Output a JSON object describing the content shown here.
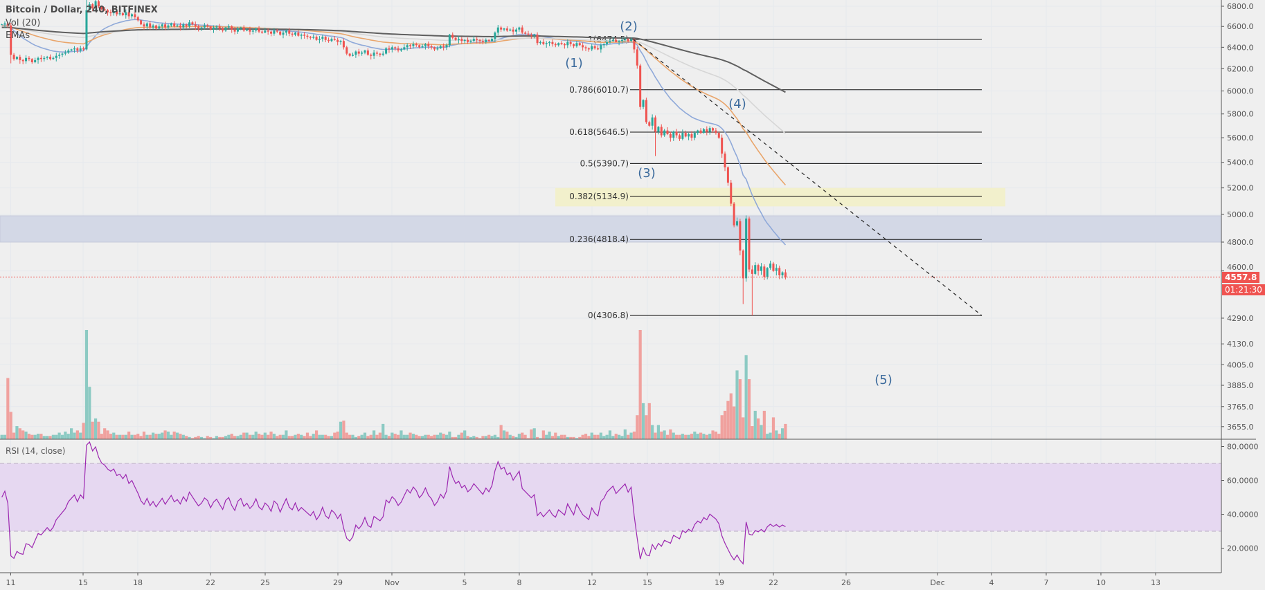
{
  "header": {
    "title": "Bitcoin / Dollar, 240, BITFINEX",
    "vol_label": "Vol (20)",
    "ema_label": "EMAs"
  },
  "rsi": {
    "label": "RSI (14, close)"
  },
  "colors": {
    "background": "#efefef",
    "candle_up": "#26a69a",
    "candle_down": "#ef5350",
    "volume_up": "#8ccac3",
    "volume_down": "#f0a19e",
    "ema_fast": "#8fa9d9",
    "ema_mid": "#e9a56b",
    "ema_slow": "#d6d6d6",
    "ema_long": "#5f5f5f",
    "rsi_line": "#9c27b0",
    "rsi_band": "#e6d8f1",
    "wave_label": "#3b6a9c",
    "zone_fib": "#f2f0cc",
    "zone_support": "#d3d8e6",
    "last_price": "#ef5350"
  },
  "chart_data": {
    "type": "candlestick",
    "price_scale": "log",
    "interval": "240",
    "x_ticks": [
      "11",
      "15",
      "18",
      "22",
      "25",
      "29",
      "Nov",
      "5",
      "8",
      "12",
      "15",
      "19",
      "22",
      "26",
      "Dec",
      "4",
      "7",
      "10",
      "13"
    ],
    "price_ticks": [
      "6800.0",
      "6600.0",
      "6400.0",
      "6200.0",
      "6000.0",
      "5800.0",
      "5600.0",
      "5400.0",
      "5200.0",
      "5000.0",
      "4800.0",
      "4600.0",
      "4290.0",
      "4130.0",
      "4005.0",
      "3885.0",
      "3765.0",
      "3655.0"
    ],
    "closes": [
      6620,
      6630,
      6610,
      6330,
      6290,
      6310,
      6280,
      6270,
      6300,
      6290,
      6260,
      6280,
      6300,
      6290,
      6300,
      6310,
      6290,
      6300,
      6320,
      6330,
      6340,
      6350,
      6370,
      6380,
      6390,
      6370,
      6390,
      6380,
      6760,
      6820,
      6780,
      6850,
      6800,
      6770,
      6760,
      6740,
      6730,
      6750,
      6720,
      6730,
      6710,
      6740,
      6700,
      6720,
      6690,
      6660,
      6620,
      6600,
      6630,
      6590,
      6610,
      6580,
      6600,
      6620,
      6590,
      6610,
      6630,
      6600,
      6610,
      6590,
      6620,
      6600,
      6640,
      6620,
      6600,
      6580,
      6590,
      6610,
      6600,
      6570,
      6590,
      6600,
      6580,
      6560,
      6590,
      6600,
      6570,
      6550,
      6580,
      6590,
      6560,
      6570,
      6550,
      6560,
      6580,
      6550,
      6540,
      6560,
      6550,
      6530,
      6560,
      6550,
      6520,
      6540,
      6560,
      6530,
      6520,
      6540,
      6510,
      6520,
      6510,
      6500,
      6490,
      6500,
      6470,
      6480,
      6500,
      6470,
      6460,
      6480,
      6470,
      6450,
      6460,
      6400,
      6340,
      6320,
      6330,
      6360,
      6340,
      6350,
      6370,
      6330,
      6320,
      6350,
      6340,
      6330,
      6340,
      6390,
      6380,
      6400,
      6390,
      6370,
      6380,
      6400,
      6420,
      6410,
      6430,
      6420,
      6400,
      6410,
      6430,
      6410,
      6400,
      6380,
      6390,
      6410,
      6400,
      6420,
      6520,
      6490,
      6470,
      6480,
      6460,
      6470,
      6450,
      6460,
      6480,
      6470,
      6460,
      6450,
      6470,
      6460,
      6480,
      6540,
      6590,
      6570,
      6580,
      6560,
      6570,
      6550,
      6570,
      6590,
      6540,
      6530,
      6520,
      6510,
      6520,
      6440,
      6450,
      6430,
      6440,
      6450,
      6430,
      6420,
      6440,
      6430,
      6420,
      6450,
      6430,
      6410,
      6440,
      6420,
      6400,
      6390,
      6380,
      6410,
      6390,
      6380,
      6420,
      6430,
      6450,
      6460,
      6470,
      6450,
      6460,
      6470,
      6480,
      6460,
      6474.5,
      6380,
      6230,
      5860,
      5920,
      5730,
      5700,
      5770,
      5650,
      5690,
      5620,
      5660,
      5630,
      5600,
      5650,
      5620,
      5590,
      5640,
      5610,
      5630,
      5600,
      5640,
      5660,
      5640,
      5670,
      5650,
      5680,
      5660,
      5640,
      5600,
      5470,
      5360,
      5240,
      5080,
      4920,
      4950,
      4740,
      4550,
      4970,
      4610,
      4580,
      4640,
      4600,
      4630,
      4560,
      4620,
      4650,
      4600,
      4620,
      4570,
      4590,
      4557.8
    ],
    "extremes": [
      {
        "candle": 3,
        "low": 6250
      },
      {
        "candle": 28,
        "high": 7100
      },
      {
        "candle": 216,
        "low": 5450
      },
      {
        "candle": 245,
        "low": 4380
      },
      {
        "candle": 248,
        "low": 4306.8
      }
    ],
    "volume": [
      4,
      4,
      56,
      25,
      6,
      12,
      10,
      8,
      7,
      5,
      4,
      4,
      5,
      5,
      3,
      3,
      3,
      4,
      4,
      6,
      4,
      7,
      5,
      10,
      6,
      8,
      6,
      15,
      100,
      48,
      16,
      19,
      16,
      5,
      10,
      8,
      5,
      6,
      4,
      4,
      4,
      4,
      7,
      4,
      4,
      5,
      3,
      7,
      4,
      4,
      6,
      5,
      5,
      6,
      8,
      7,
      4,
      7,
      6,
      5,
      4,
      3,
      2,
      1,
      2,
      3,
      2,
      1,
      3,
      2,
      1,
      3,
      2,
      2,
      3,
      4,
      5,
      3,
      3,
      4,
      6,
      6,
      4,
      4,
      7,
      5,
      4,
      6,
      4,
      7,
      5,
      3,
      4,
      4,
      8,
      3,
      3,
      4,
      5,
      4,
      3,
      6,
      3,
      5,
      8,
      4,
      4,
      4,
      3,
      3,
      6,
      7,
      16,
      17,
      6,
      4,
      4,
      2,
      3,
      4,
      6,
      3,
      4,
      8,
      4,
      6,
      14,
      4,
      3,
      6,
      5,
      4,
      8,
      4,
      4,
      6,
      5,
      4,
      3,
      3,
      4,
      4,
      3,
      4,
      4,
      6,
      5,
      4,
      7,
      2,
      2,
      4,
      6,
      8,
      3,
      2,
      3,
      2,
      1,
      3,
      3,
      4,
      3,
      4,
      2,
      13,
      8,
      7,
      4,
      3,
      2,
      5,
      6,
      4,
      1,
      9,
      10,
      2,
      1,
      8,
      4,
      7,
      3,
      6,
      3,
      4,
      4,
      2,
      2,
      2,
      1,
      2,
      4,
      5,
      3,
      6,
      4,
      4,
      6,
      3,
      4,
      8,
      3,
      5,
      4,
      3,
      9,
      4,
      6,
      7,
      22,
      100,
      33,
      22,
      33,
      13,
      6,
      13,
      7,
      8,
      4,
      9,
      6,
      4,
      4,
      5,
      4,
      4,
      5,
      7,
      5,
      6,
      5,
      4,
      5,
      8,
      7,
      5,
      22,
      26,
      35,
      42,
      30,
      63,
      55,
      20,
      77,
      55,
      12,
      26,
      19,
      13,
      26,
      5,
      6,
      20,
      8,
      5,
      10,
      14
    ],
    "last_price": "4557.8",
    "countdown": "01:21:30",
    "fib_levels": [
      {
        "label": "1(6474.5)",
        "price": 6474.5
      },
      {
        "label": "0.786(6010.7)",
        "price": 6010.7
      },
      {
        "label": "0.618(5646.5)",
        "price": 5646.5
      },
      {
        "label": "0.5(5390.7)",
        "price": 5390.7
      },
      {
        "label": "0.382(5134.9)",
        "price": 5134.9
      },
      {
        "label": "0.236(4818.4)",
        "price": 4818.4
      },
      {
        "label": "0(4306.8)",
        "price": 4306.8
      }
    ],
    "zones": [
      {
        "name": "fib-0382-zone",
        "from": 5060,
        "to": 5200
      },
      {
        "name": "support-zone",
        "from": 4800,
        "to": 4990
      }
    ],
    "trendline": {
      "from_price": 6474.5,
      "to_price": 4306.8
    },
    "waves": [
      "(1)",
      "(2)",
      "(3)",
      "(4)",
      "(5)"
    ],
    "rsi_ticks": [
      "80.0000",
      "60.0000",
      "40.0000",
      "20.0000"
    ],
    "rsi_band": [
      30,
      70
    ]
  }
}
